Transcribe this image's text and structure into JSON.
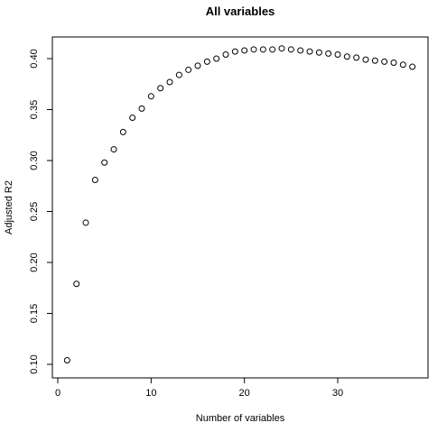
{
  "chart_data": {
    "type": "scatter",
    "title": "All variables",
    "xlabel": "Number of variables",
    "ylabel": "Adjusted R2",
    "xlim": [
      0,
      38
    ],
    "ylim": [
      0.1,
      0.41
    ],
    "xticks": [
      0,
      10,
      20,
      30
    ],
    "yticks": [
      0.1,
      0.15,
      0.2,
      0.25,
      0.3,
      0.35,
      0.4
    ],
    "xtick_labels": [
      "0",
      "10",
      "20",
      "30"
    ],
    "ytick_labels": [
      "0.10",
      "0.15",
      "0.20",
      "0.25",
      "0.30",
      "0.35",
      "0.40"
    ],
    "grid": false,
    "marker": "open-circle",
    "x": [
      1,
      2,
      3,
      4,
      5,
      6,
      7,
      8,
      9,
      10,
      11,
      12,
      13,
      14,
      15,
      16,
      17,
      18,
      19,
      20,
      21,
      22,
      23,
      24,
      25,
      26,
      27,
      28,
      29,
      30,
      31,
      32,
      33,
      34,
      35,
      36,
      37,
      38
    ],
    "y": [
      0.104,
      0.179,
      0.239,
      0.281,
      0.298,
      0.311,
      0.328,
      0.342,
      0.351,
      0.363,
      0.371,
      0.377,
      0.384,
      0.389,
      0.393,
      0.397,
      0.4,
      0.404,
      0.407,
      0.408,
      0.409,
      0.409,
      0.409,
      0.41,
      0.409,
      0.408,
      0.407,
      0.406,
      0.405,
      0.404,
      0.402,
      0.401,
      0.399,
      0.398,
      0.397,
      0.396,
      0.394,
      0.392
    ]
  }
}
